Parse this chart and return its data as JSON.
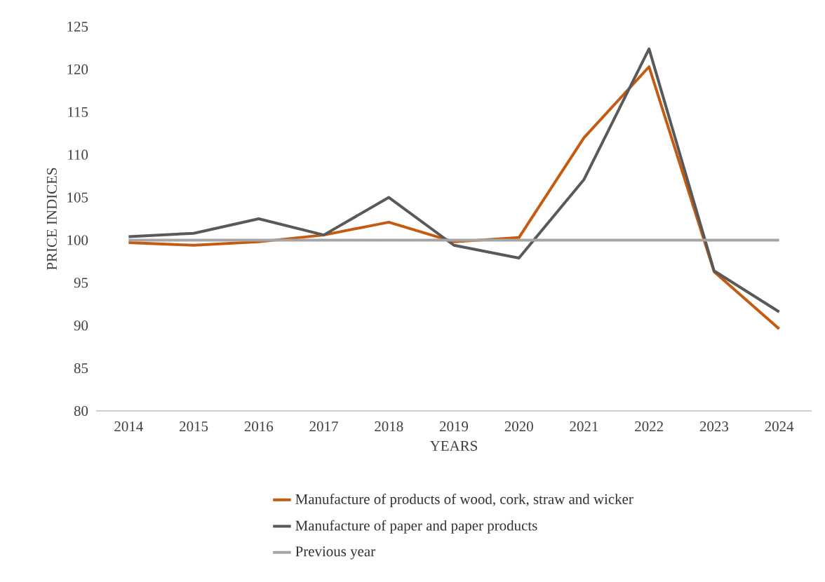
{
  "chart_data": {
    "type": "line",
    "xlabel": "YEARS",
    "ylabel": "PRICE INDICES",
    "categories": [
      "2014",
      "2015",
      "2016",
      "2017",
      "2018",
      "2019",
      "2020",
      "2021",
      "2022",
      "2023",
      "2024"
    ],
    "series": [
      {
        "name": "Manufacture of products of wood, cork, straw and wicker",
        "color": "#c55a11",
        "values": [
          99.7,
          99.4,
          99.8,
          100.6,
          102.1,
          99.8,
          100.3,
          112.0,
          120.3,
          96.3,
          89.6
        ]
      },
      {
        "name": "Manufacture of paper and paper products",
        "color": "#595959",
        "values": [
          100.4,
          100.8,
          102.5,
          100.6,
          105.0,
          99.4,
          97.9,
          107.1,
          122.4,
          96.4,
          91.6
        ]
      },
      {
        "name": "Previous year",
        "color": "#a5a5a5",
        "values": [
          100,
          100,
          100,
          100,
          100,
          100,
          100,
          100,
          100,
          100,
          100
        ]
      }
    ],
    "ylim": [
      80,
      125
    ],
    "yticks": [
      80,
      85,
      90,
      95,
      100,
      105,
      110,
      115,
      120,
      125
    ],
    "grid": false,
    "legend": "bottom",
    "marker": "none",
    "line_style": "solid"
  }
}
